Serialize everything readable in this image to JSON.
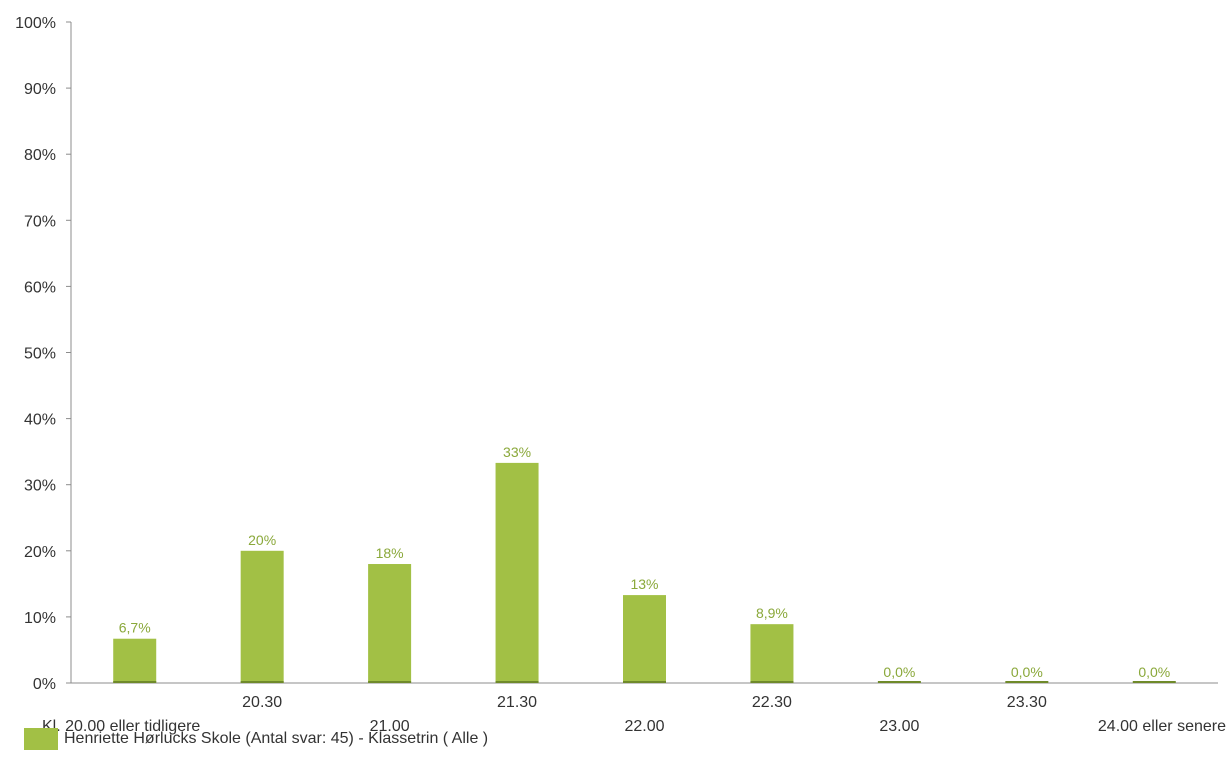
{
  "colors": {
    "bar": "#a2c045",
    "bar_base": "#6f8a2a",
    "data_label": "#8aa83a",
    "axis": "#8c8c8c",
    "text": "#333333"
  },
  "chart_data": {
    "type": "bar",
    "categories": [
      "Kl. 20.00 eller tidligere",
      "20.30",
      "21.00",
      "21.30",
      "22.00",
      "22.30",
      "23.00",
      "23.30",
      "24.00 eller senere"
    ],
    "series": [
      {
        "name": "Henriette Hørlucks Skole (Antal svar: 45)  - Klassetrin ( Alle )",
        "values": [
          6.7,
          20,
          18,
          33.3,
          13.3,
          8.9,
          0,
          0,
          0
        ],
        "labels": [
          "6,7%",
          "20%",
          "18%",
          "33%",
          "13%",
          "8,9%",
          "0,0%",
          "0,0%",
          "0,0%"
        ]
      }
    ],
    "ylim": [
      0,
      100
    ],
    "yticks": [
      "0%",
      "10%",
      "20%",
      "30%",
      "40%",
      "50%",
      "60%",
      "70%",
      "80%",
      "90%",
      "100%"
    ],
    "xtick_rows": [
      "lower",
      "upper",
      "lower",
      "upper",
      "lower",
      "upper",
      "lower",
      "upper",
      "lower"
    ],
    "grid": false,
    "legend_position": "bottom-left"
  }
}
